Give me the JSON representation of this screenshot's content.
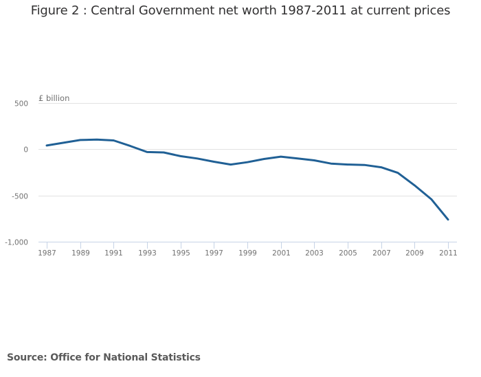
{
  "chart_data": {
    "type": "line",
    "title": "Figure 2 : Central Government net worth 1987-2011 at current prices",
    "xlabel": "",
    "ylabel": "£ billion",
    "ylim": [
      -1000,
      500
    ],
    "yticks": [
      500,
      0,
      -500,
      -1000
    ],
    "ytick_labels": [
      "500",
      "0",
      "-500",
      "-1,000"
    ],
    "xlim": [
      1987,
      2011
    ],
    "xticks": [
      1987,
      1989,
      1991,
      1993,
      1995,
      1997,
      1999,
      2001,
      2003,
      2005,
      2007,
      2009,
      2011
    ],
    "xtick_labels": [
      "1987",
      "1989",
      "1991",
      "1993",
      "1995",
      "1997",
      "1999",
      "2001",
      "2003",
      "2005",
      "2007",
      "2009",
      "2011"
    ],
    "grid": true,
    "legend": "none",
    "series": [
      {
        "name": "Central Government net worth",
        "color": "#206095",
        "x": [
          1987,
          1988,
          1989,
          1990,
          1991,
          1992,
          1993,
          1994,
          1995,
          1996,
          1997,
          1998,
          1999,
          2000,
          2001,
          2002,
          2003,
          2004,
          2005,
          2006,
          2007,
          2008,
          2009,
          2010,
          2011
        ],
        "values": [
          40,
          70,
          100,
          105,
          95,
          35,
          -30,
          -35,
          -75,
          -100,
          -135,
          -165,
          -140,
          -105,
          -80,
          -100,
          -120,
          -155,
          -165,
          -170,
          -195,
          -255,
          -390,
          -540,
          -760
        ]
      }
    ],
    "source": "Source: Office for National Statistics"
  },
  "colors": {
    "line": "#206095",
    "gridline": "#e2e2e2",
    "axis": "#c6d3e6",
    "text": "#707070"
  }
}
